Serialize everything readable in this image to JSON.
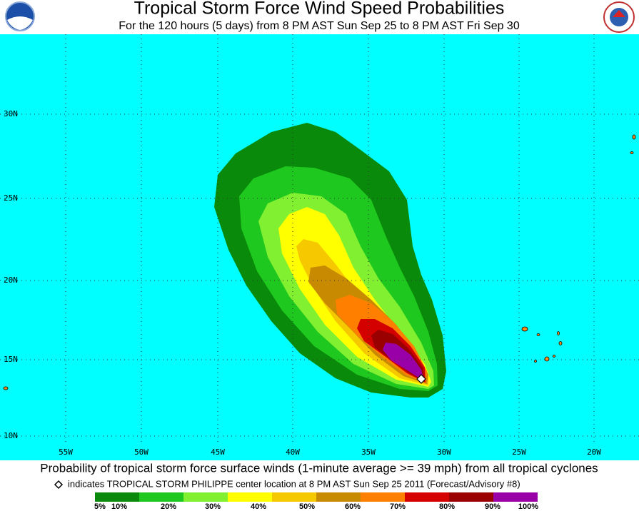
{
  "title": "Tropical Storm Force Wind Speed Probabilities",
  "subtitle": "For the 120 hours (5 days) from 8 PM AST Sun Sep 25 to 8 PM AST Fri Sep 30",
  "latitude_labels": [
    "30N",
    "25N",
    "20N",
    "15N",
    "10N"
  ],
  "longitude_labels": [
    "55W",
    "50W",
    "45W",
    "40W",
    "35W",
    "30W",
    "25W",
    "20W"
  ],
  "caption": "Probability of tropical storm force surface winds (1-minute average >= 39 mph) from all tropical cyclones",
  "note": "indicates TROPICAL STORM PHILIPPE center location at 8 PM AST Sun Sep 25 2011 (Forecast/Advisory #8)",
  "legend": {
    "labels": [
      "5%",
      "10%",
      "20%",
      "30%",
      "40%",
      "50%",
      "60%",
      "70%",
      "80%",
      "90%",
      "100%"
    ],
    "colors": [
      "#0a8a0a",
      "#1ec81e",
      "#80f030",
      "#ffff00",
      "#f5c800",
      "#c88a00",
      "#ff8000",
      "#d40000",
      "#9a0000",
      "#9a00a8"
    ]
  }
}
